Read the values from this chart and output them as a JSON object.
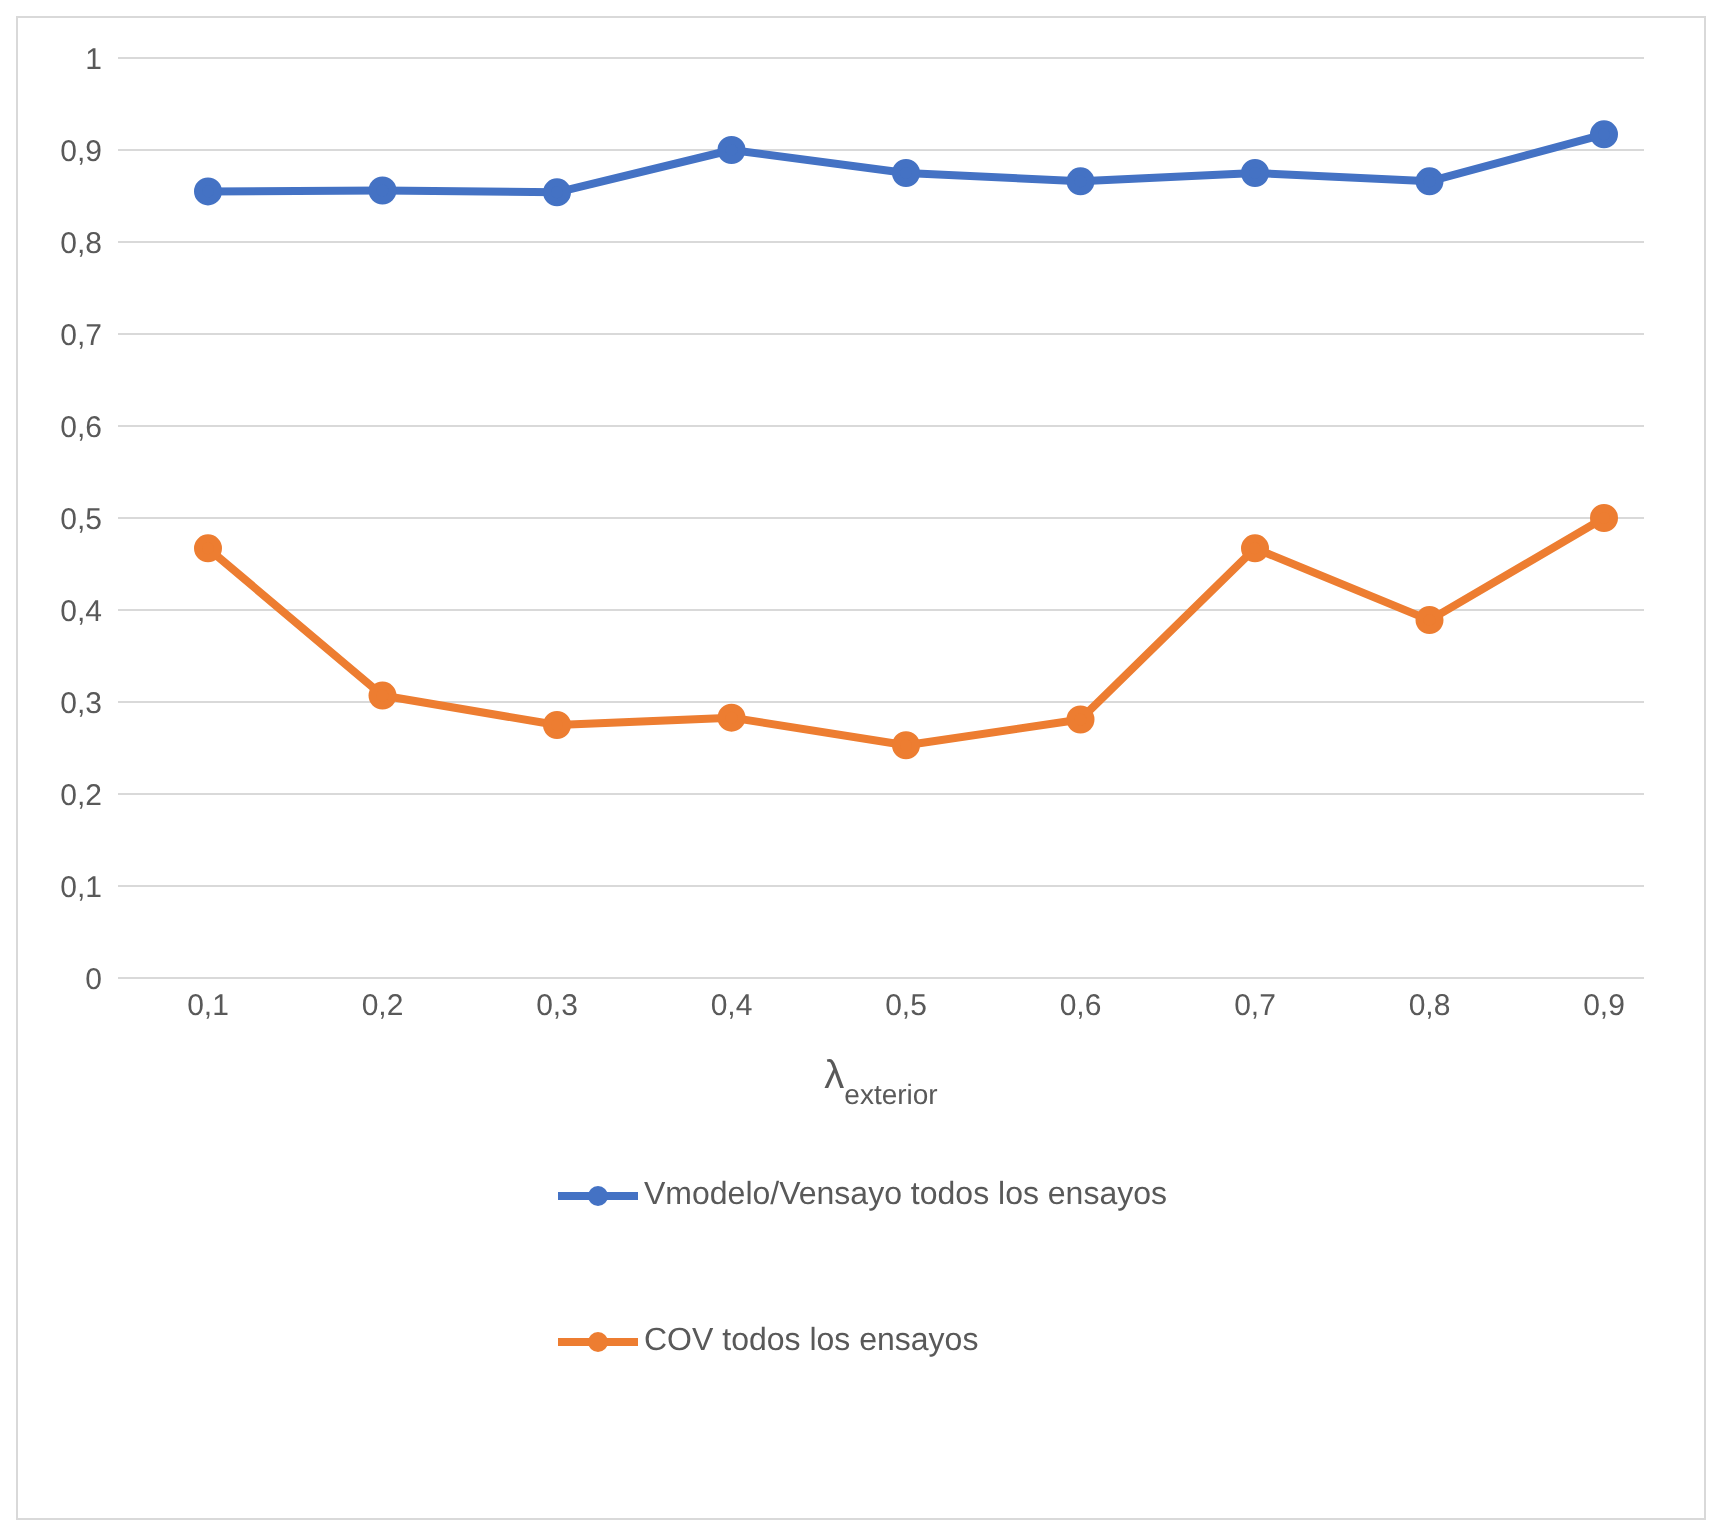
{
  "chart_data": {
    "type": "line",
    "xlabel": "λ$_{exterior}$",
    "categories": [
      "0,1",
      "0,2",
      "0,3",
      "0,4",
      "0,5",
      "0,6",
      "0,7",
      "0,8",
      "0,9"
    ],
    "series": [
      {
        "name": "Vmodelo/Vensayo todos los ensayos",
        "color": "#4472c4",
        "values": [
          0.855,
          0.856,
          0.854,
          0.9,
          0.875,
          0.866,
          0.875,
          0.866,
          0.917
        ]
      },
      {
        "name": "COV todos los ensayos",
        "color": "#ed7d31",
        "values": [
          0.467,
          0.307,
          0.275,
          0.283,
          0.253,
          0.281,
          0.467,
          0.389,
          0.5
        ]
      }
    ],
    "ylim": [
      0,
      1
    ],
    "yticks": [
      {
        "value": 0,
        "label": "0"
      },
      {
        "value": 0.1,
        "label": "0,1"
      },
      {
        "value": 0.2,
        "label": "0,2"
      },
      {
        "value": 0.3,
        "label": "0,3"
      },
      {
        "value": 0.4,
        "label": "0,4"
      },
      {
        "value": 0.5,
        "label": "0,5"
      },
      {
        "value": 0.6,
        "label": "0,6"
      },
      {
        "value": 0.7,
        "label": "0,7"
      },
      {
        "value": 0.8,
        "label": "0,8"
      },
      {
        "value": 0.9,
        "label": "0,9"
      },
      {
        "value": 1,
        "label": "1"
      }
    ],
    "grid": "y",
    "legend": "bottom",
    "marker": "circle",
    "line_style": "solid"
  }
}
